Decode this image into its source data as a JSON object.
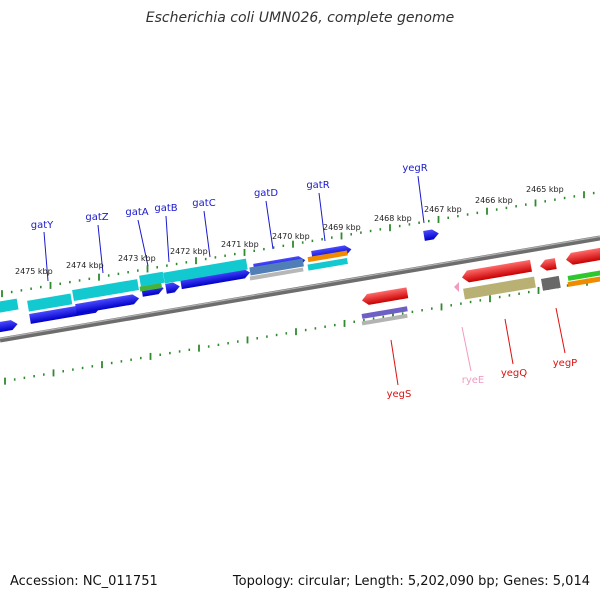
{
  "title": "Escherichia coli UMN026, complete genome",
  "footer": {
    "accession": "Accession: NC_011751",
    "summary": "Topology: circular; Length: 5,202,090 bp; Genes: 5,014"
  },
  "colors": {
    "backbone": "#8a8a8a",
    "tick": "#2e8b2e",
    "forward_label": "#1a1acc",
    "reverse_label": "#dd1111",
    "rna_label": "#f19bc1"
  },
  "ticks": [
    {
      "label": "2475 kbp"
    },
    {
      "label": "2474 kbp"
    },
    {
      "label": "2473 kbp"
    },
    {
      "label": "2472 kbp"
    },
    {
      "label": "2471 kbp"
    },
    {
      "label": "2470 kbp"
    },
    {
      "label": "2469 kbp"
    },
    {
      "label": "2468 kbp"
    },
    {
      "label": "2467 kbp"
    },
    {
      "label": "2466 kbp"
    },
    {
      "label": "2465 kbp"
    }
  ],
  "forward_genes": [
    {
      "name": "gatY"
    },
    {
      "name": "gatZ"
    },
    {
      "name": "gatA"
    },
    {
      "name": "gatB"
    },
    {
      "name": "gatC"
    },
    {
      "name": "gatD"
    },
    {
      "name": "gatR"
    },
    {
      "name": "yegR"
    }
  ],
  "reverse_genes": [
    {
      "name": "yegS",
      "kind": "gene"
    },
    {
      "name": "ryeE",
      "kind": "rna"
    },
    {
      "name": "yegQ",
      "kind": "gene"
    },
    {
      "name": "yegP",
      "kind": "gene"
    }
  ]
}
